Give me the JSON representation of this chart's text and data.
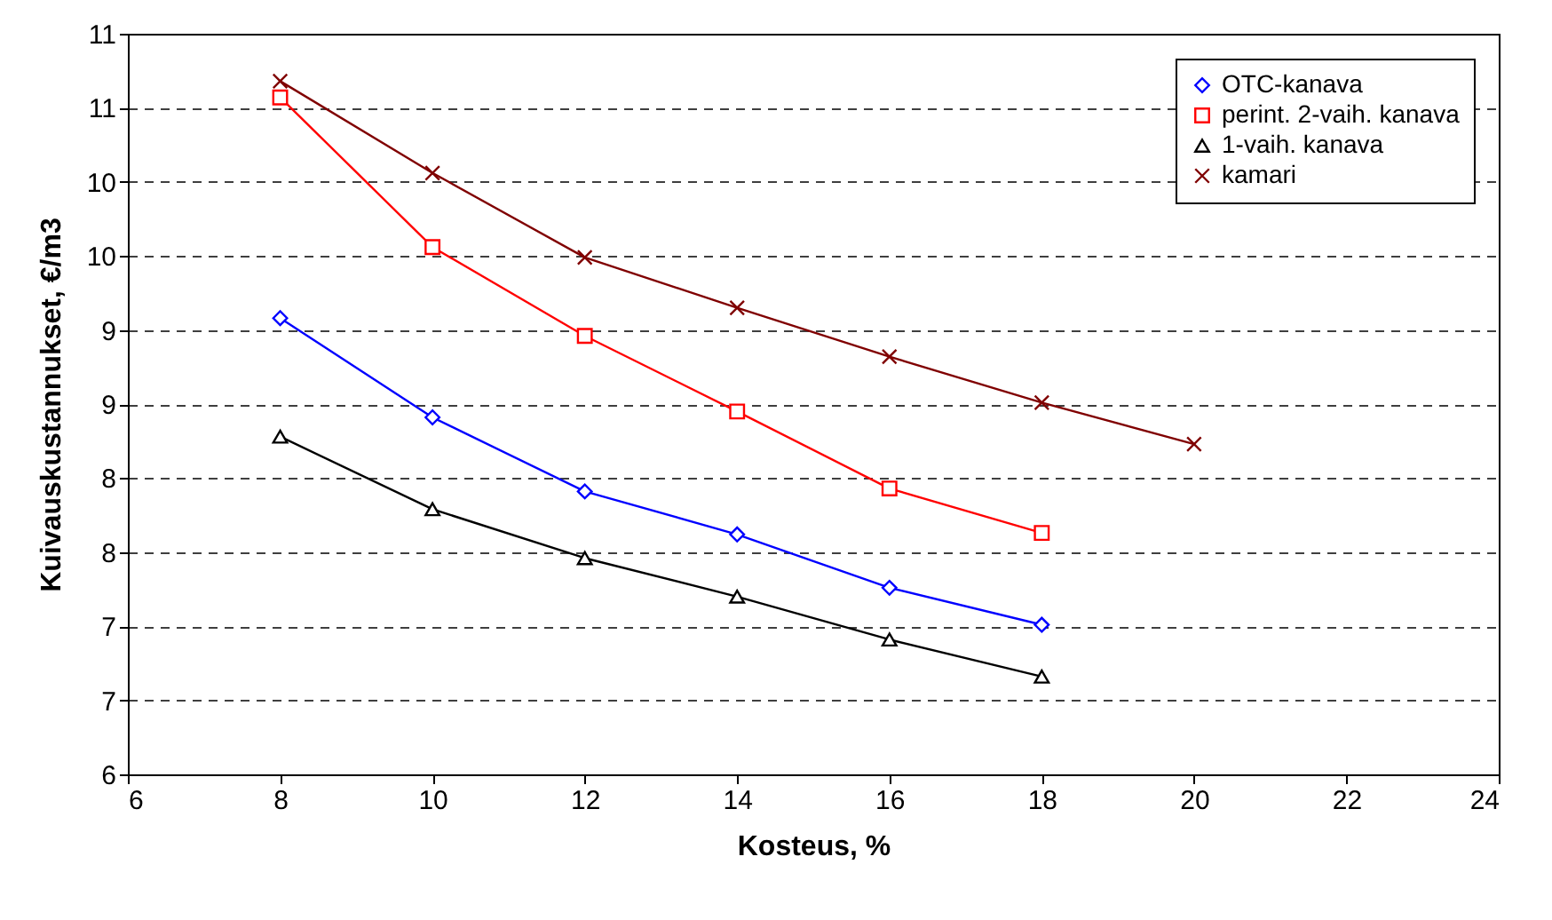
{
  "chart_data": {
    "type": "line",
    "xlabel": "Kosteus, %",
    "ylabel": "Kuivauskustannukset, €/m3",
    "xlim": [
      6,
      24
    ],
    "xticks": [
      6,
      8,
      10,
      12,
      14,
      16,
      18,
      20,
      22,
      24
    ],
    "ylim": [
      6,
      11
    ],
    "yticks": [
      6,
      {
        "value": 6.5,
        "label": "7"
      },
      7,
      {
        "value": 7.5,
        "label": "8"
      },
      8,
      {
        "value": 8.5,
        "label": "9"
      },
      9,
      {
        "value": 9.5,
        "label": "10"
      },
      10,
      {
        "value": 10.5,
        "label": "11"
      },
      11
    ],
    "grid": "y",
    "legend": "top right",
    "line_style": "solid",
    "series": [
      {
        "name": "OTC-kanava",
        "color": "#0000ff",
        "marker": "diamond",
        "x": [
          8,
          10,
          12,
          14,
          16,
          18
        ],
        "values": [
          9.08,
          8.41,
          7.91,
          7.62,
          7.26,
          7.01
        ]
      },
      {
        "name": "perint. 2-vaih. kanava",
        "color": "#ff0000",
        "marker": "square",
        "x": [
          8,
          10,
          12,
          14,
          16,
          18
        ],
        "values": [
          10.57,
          9.56,
          8.96,
          8.45,
          7.93,
          7.63
        ]
      },
      {
        "name": "1-vaih. kanava",
        "color": "#000000",
        "marker": "triangle",
        "x": [
          8,
          10,
          12,
          14,
          16,
          18
        ],
        "values": [
          8.28,
          7.79,
          7.46,
          7.2,
          6.91,
          6.66
        ]
      },
      {
        "name": "kamari",
        "color": "#800000",
        "marker": "cross",
        "x": [
          8,
          10,
          12,
          14,
          16,
          18,
          20
        ],
        "values": [
          10.68,
          10.06,
          9.49,
          9.15,
          8.82,
          8.51,
          8.23
        ]
      }
    ]
  }
}
